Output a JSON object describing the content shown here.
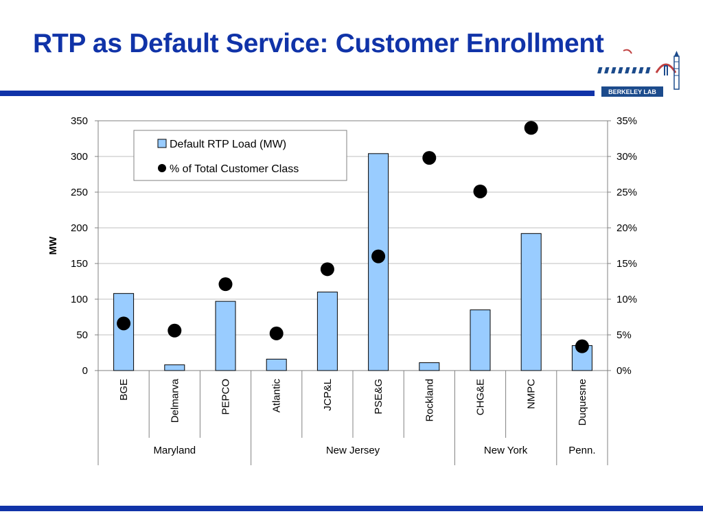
{
  "slide": {
    "title": "RTP as Default Service: Customer Enrollment",
    "accent_color": "#1033a8",
    "logo_text": "BERKELEY LAB"
  },
  "chart_data": {
    "type": "bar",
    "categories": [
      "BGE",
      "Delmarva",
      "PEPCO",
      "Atlantic",
      "JCP&L",
      "PSE&G",
      "Rockland",
      "CHG&E",
      "NMPC",
      "Duquesne"
    ],
    "groups": [
      {
        "label": "Maryland",
        "count": 3
      },
      {
        "label": "New Jersey",
        "count": 4
      },
      {
        "label": "New York",
        "count": 2
      },
      {
        "label": "Penn.",
        "count": 1
      }
    ],
    "series": [
      {
        "name": "Default RTP Load (MW)",
        "type": "bar",
        "axis": "left",
        "color": "#99ccff",
        "values": [
          108,
          8,
          97,
          16,
          110,
          304,
          11,
          85,
          192,
          35
        ]
      },
      {
        "name": "% of Total Customer Class",
        "type": "scatter",
        "axis": "right",
        "color": "#000000",
        "values": [
          6.6,
          5.6,
          12.1,
          5.2,
          14.2,
          16.0,
          29.8,
          25.1,
          34.0,
          3.4
        ]
      }
    ],
    "ylabel": "MW",
    "ylim": [
      0,
      350
    ],
    "yticks": [
      "0",
      "50",
      "100",
      "150",
      "200",
      "250",
      "300",
      "350"
    ],
    "y2lim": [
      0,
      35
    ],
    "y2ticks": [
      "0%",
      "5%",
      "10%",
      "15%",
      "20%",
      "25%",
      "30%",
      "35%"
    ],
    "grid": true,
    "legend_position": "top-left"
  }
}
